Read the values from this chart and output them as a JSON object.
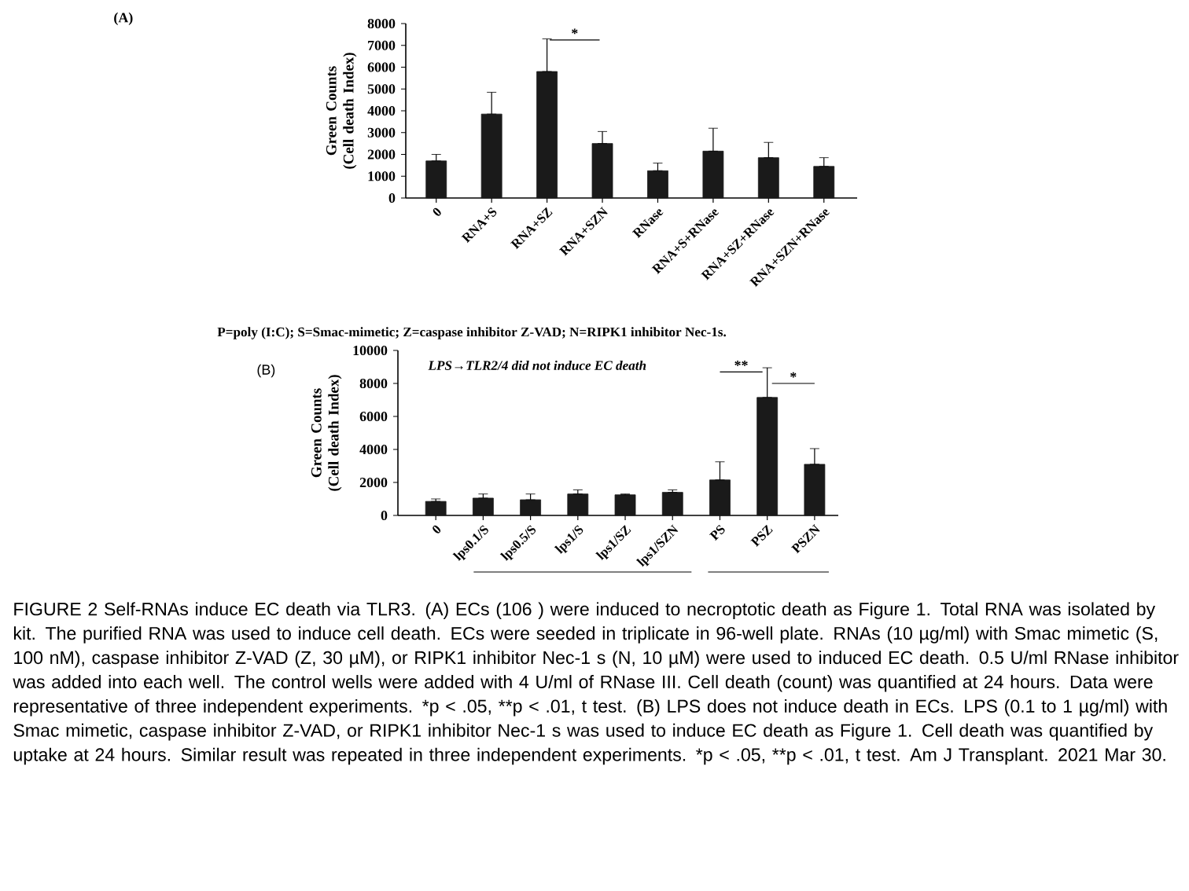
{
  "chart_data": [
    {
      "type": "bar",
      "ylabel": "Green Counts (Cell death Index)",
      "categories": [
        "0",
        "RNA+S",
        "RNA+SZ",
        "RNA+SZN",
        "RNase",
        "RNA+S+RNase",
        "RNA+SZ+RNase",
        "RNA+SZN+RNase"
      ],
      "values": [
        1700,
        3850,
        5800,
        2500,
        1250,
        2150,
        1850,
        1450
      ],
      "errors": [
        [
          1700,
          2000
        ],
        [
          3850,
          4850
        ],
        [
          5800,
          7300
        ],
        [
          2500,
          3050
        ],
        [
          1250,
          1600
        ],
        [
          2150,
          3200
        ],
        [
          1850,
          2550
        ],
        [
          1450,
          1850
        ]
      ],
      "color": "#1a1a1a",
      "ylim": [
        0,
        8000
      ],
      "yticks": [
        0,
        1000,
        2000,
        3000,
        4000,
        5000,
        6000,
        7000,
        8000
      ],
      "annotations": [
        "(A)",
        "*",
        "P=poly (I:C); S=Smac-mimetic; Z=caspase inhibitor Z-VAD; N=RIPK1 inhibitor Nec-1s."
      ]
    },
    {
      "type": "bar",
      "ylabel": "Green Counts (Cell death Index)",
      "categories": [
        "0",
        "lps0.1/S",
        "lps0.5/S",
        "lps1/S",
        "lps1/SZ",
        "lps1/SZN",
        "PS",
        "PSZ",
        "PSZN"
      ],
      "values": [
        850,
        1050,
        950,
        1300,
        1250,
        1400,
        2150,
        7150,
        3100
      ],
      "errors": [
        [
          850,
          1000
        ],
        [
          1050,
          1300
        ],
        [
          950,
          1300
        ],
        [
          1300,
          1550
        ],
        [
          1250,
          1300
        ],
        [
          1400,
          1550
        ],
        [
          2150,
          3250
        ],
        [
          7150,
          8950
        ],
        [
          3100,
          4050
        ]
      ],
      "color": "#1a1a1a",
      "ylim": [
        0,
        10000
      ],
      "yticks": [
        0,
        2000,
        4000,
        6000,
        8000,
        10000
      ],
      "annotations": [
        "(B)",
        "LPS→TLR2/4 did not induce EC death",
        "**",
        "*",
        "FIGURE 2    Self-RNAs induce EC death via TLR3. (A) ECs (106 ) were induced to necroptotic death as Figure 1. Total RNA was isolated by kit. The purified RNA was used to induce cell death. ECs were seeded in triplicate in 96-well plate. RNAs (10 µg/ml) with Smac mimetic (S, 100 nM), caspase inhibitor Z-VAD (Z, 30 µM), or RIPK1 inhibitor Nec-1 s (N, 10 µM) were used to induced EC death. 0.5 U/ml RNase inhibitor was added into each well. The control wells were added with 4 U/ml of RNase III. Cell death (count) was quantified at 24 hours. Data were representative of three independent experiments. *p < .05, **p < .01, t test. (B) LPS does not induce death in ECs. LPS (0.1 to 1 µg/ml) with Smac mimetic, caspase inhibitor Z-VAD, or RIPK1 inhibitor Nec-1 s was used to induce EC death as Figure 1. Cell death was quantified by uptake at 24 hours. Similar result was repeated in three independent experiments. *p < .05, **p < .01, t test. Am J Transplant. 2021 Mar 30."
      ]
    }
  ]
}
